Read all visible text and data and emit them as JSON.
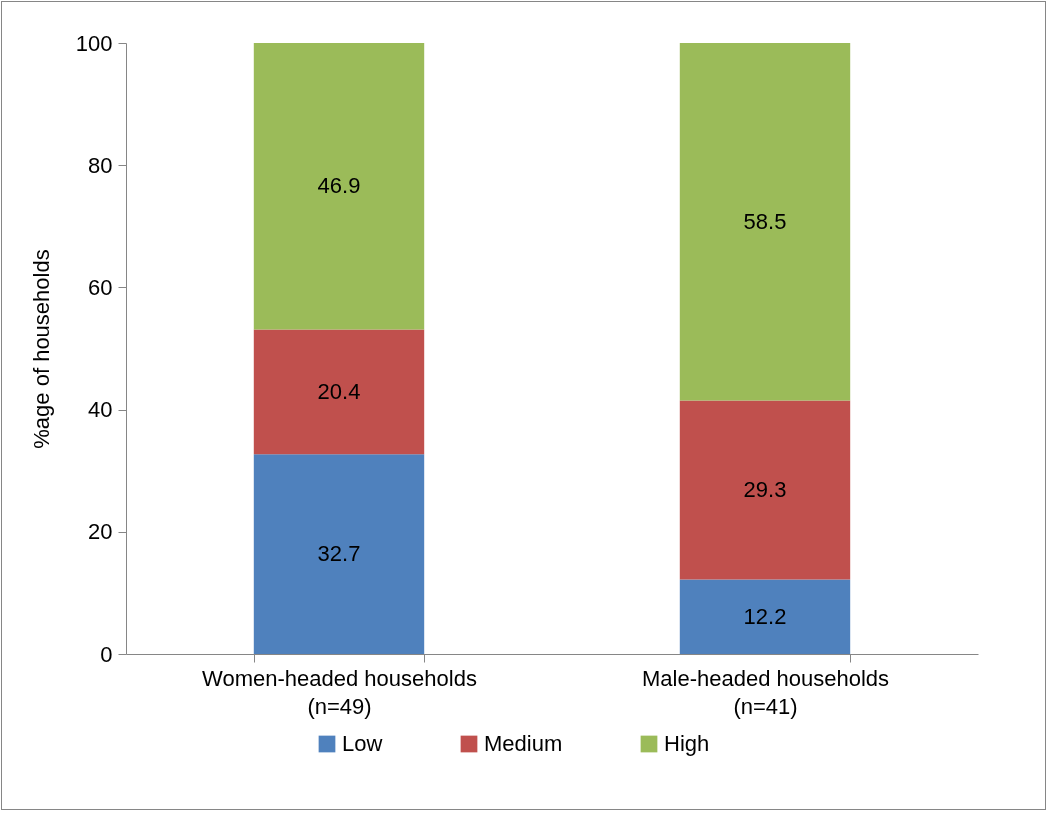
{
  "chart_data": {
    "type": "bar",
    "stacked": true,
    "ylabel": "%age of households",
    "categories": [
      "Women-headed households\n(n=49)",
      "Male-headed households\n(n=41)"
    ],
    "series": [
      {
        "name": "Low",
        "color": "#4f81bd",
        "values": [
          32.7,
          12.2
        ]
      },
      {
        "name": "Medium",
        "color": "#c0504d",
        "values": [
          20.4,
          29.3
        ]
      },
      {
        "name": "High",
        "color": "#9bbb59",
        "values": [
          46.9,
          58.5
        ]
      }
    ],
    "ylim": [
      0,
      100
    ],
    "yticks": [
      0,
      20,
      40,
      60,
      80,
      100
    ],
    "grid": false,
    "legend": "bottom",
    "data_labels": true
  }
}
